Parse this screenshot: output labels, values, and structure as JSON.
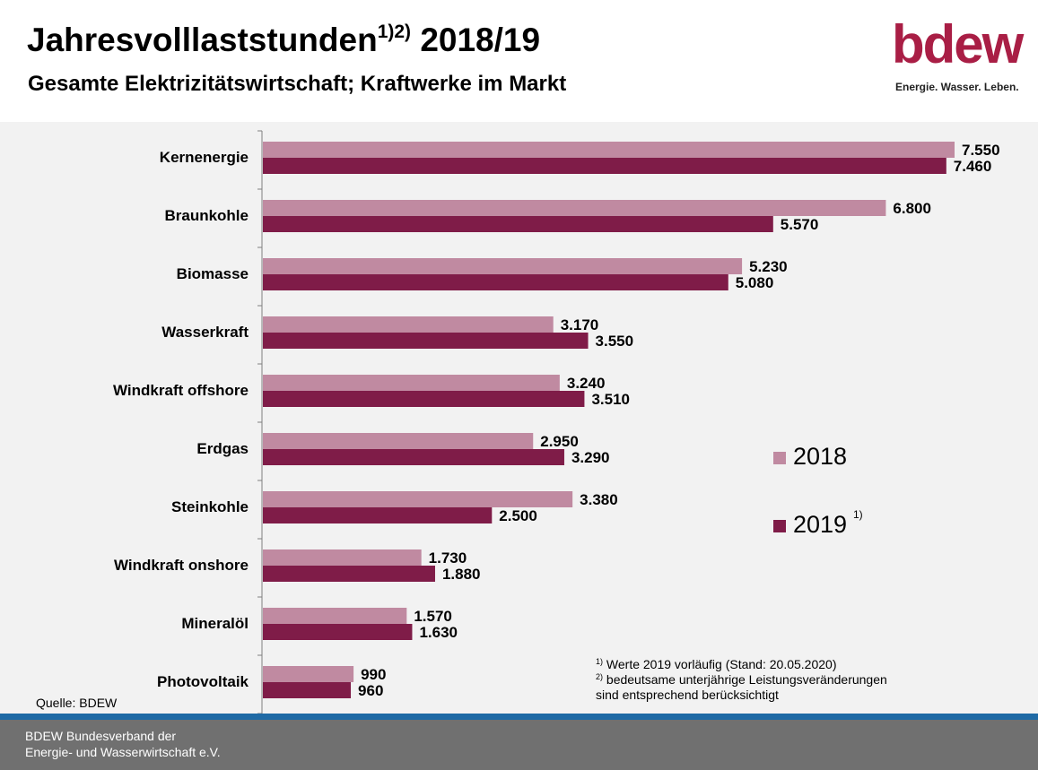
{
  "header": {
    "title": "Jahresvolllaststunden",
    "title_sup": "1)2)",
    "title_years": "2018/19",
    "subtitle": "Gesamte Elektrizitätswirtschaft; Kraftwerke im Markt",
    "logo_text": "bdew",
    "logo_slogan": "Energie. Wasser. Leben."
  },
  "chart_data": {
    "type": "bar",
    "orientation": "horizontal",
    "categories": [
      "Kernenergie",
      "Braunkohle",
      "Biomasse",
      "Wasserkraft",
      "Windkraft offshore",
      "Erdgas",
      "Steinkohle",
      "Windkraft onshore",
      "Mineralöl",
      "Photovoltaik"
    ],
    "series": [
      {
        "name": "2018",
        "values": [
          7550,
          6800,
          5230,
          3170,
          3240,
          2950,
          3380,
          1730,
          1570,
          990
        ],
        "labels": [
          "7.550",
          "6.800",
          "5.230",
          "3.170",
          "3.240",
          "2.950",
          "3.380",
          "1.730",
          "1.570",
          "990"
        ],
        "color": "#c08aa1"
      },
      {
        "name": "2019",
        "values": [
          7460,
          5570,
          5080,
          3550,
          3510,
          3290,
          2500,
          1880,
          1630,
          960
        ],
        "labels": [
          "7.460",
          "5.570",
          "5.080",
          "3.550",
          "3.510",
          "3.290",
          "2.500",
          "1.880",
          "1.630",
          "960"
        ],
        "color": "#7f1c48"
      }
    ],
    "xlim": [
      0,
      7550
    ],
    "grid": false,
    "legend_position": "right"
  },
  "legend": {
    "label_2018": "2018",
    "label_2019": "2019",
    "sup_2019": "1)"
  },
  "notes": {
    "source": "Quelle: BDEW",
    "fn1_mark": "1)",
    "fn1_text": " Werte 2019 vorläufig (Stand: 20.05.2020)",
    "fn2_mark": "2)",
    "fn2_text_line1": " bedeutsame unterjährige Leistungsveränderungen",
    "fn2_text_line2": "sind entsprechend berücksichtigt"
  },
  "footer": {
    "org_line1": "BDEW Bundesverband der",
    "org_line2": "Energie- und Wasserwirtschaft e.V."
  },
  "colors": {
    "bar_2018": "#c08aa1",
    "bar_2019": "#7f1c48",
    "brand": "#a91e45",
    "plot_background": "#f2f2f2",
    "footer_background": "#707070",
    "footer_stripe": "#1f6aa5"
  }
}
